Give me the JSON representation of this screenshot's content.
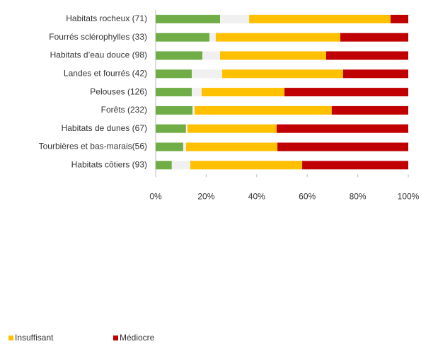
{
  "chart_data": {
    "type": "stacked-barh",
    "categories": [
      "Habitats rocheux (71)",
      "Fourrés sclérophylles (33)",
      "Habitats d’eau douce (98)",
      "Landes et fourrés (42)",
      "Pelouses (126)",
      "Forêts (232)",
      "Habitats de dunes (67)",
      "Tourbières et bas-marais(56)",
      "Habitats côtiers (93)"
    ],
    "series": [
      {
        "color": "#70ad47",
        "values": [
          25.5,
          21.3,
          18.5,
          14.3,
          14.3,
          14.6,
          12.0,
          10.9,
          6.4
        ]
      },
      {
        "color": "#f0f0f0",
        "values": [
          11.5,
          2.5,
          7.0,
          12.0,
          3.9,
          0.8,
          0.6,
          1.1,
          7.3
        ]
      },
      {
        "name": "Insuffisant",
        "color": "#ffc000",
        "values": [
          56.0,
          49.3,
          42.0,
          47.9,
          32.8,
          54.3,
          35.3,
          36.2,
          44.3
        ]
      },
      {
        "name": "Médiocre",
        "color": "#c00000",
        "values": [
          7.0,
          26.9,
          32.5,
          25.8,
          49.0,
          30.3,
          52.1,
          51.8,
          42.0
        ]
      }
    ],
    "xlim": [
      0,
      100
    ],
    "xticks": [
      {
        "value": 0,
        "label": "0%"
      },
      {
        "value": 20,
        "label": "20%"
      },
      {
        "value": 40,
        "label": "40%"
      },
      {
        "value": 60,
        "label": "60%"
      },
      {
        "value": 80,
        "label": "80%"
      },
      {
        "value": 100,
        "label": "100%"
      }
    ],
    "legend": "bottom-left"
  }
}
